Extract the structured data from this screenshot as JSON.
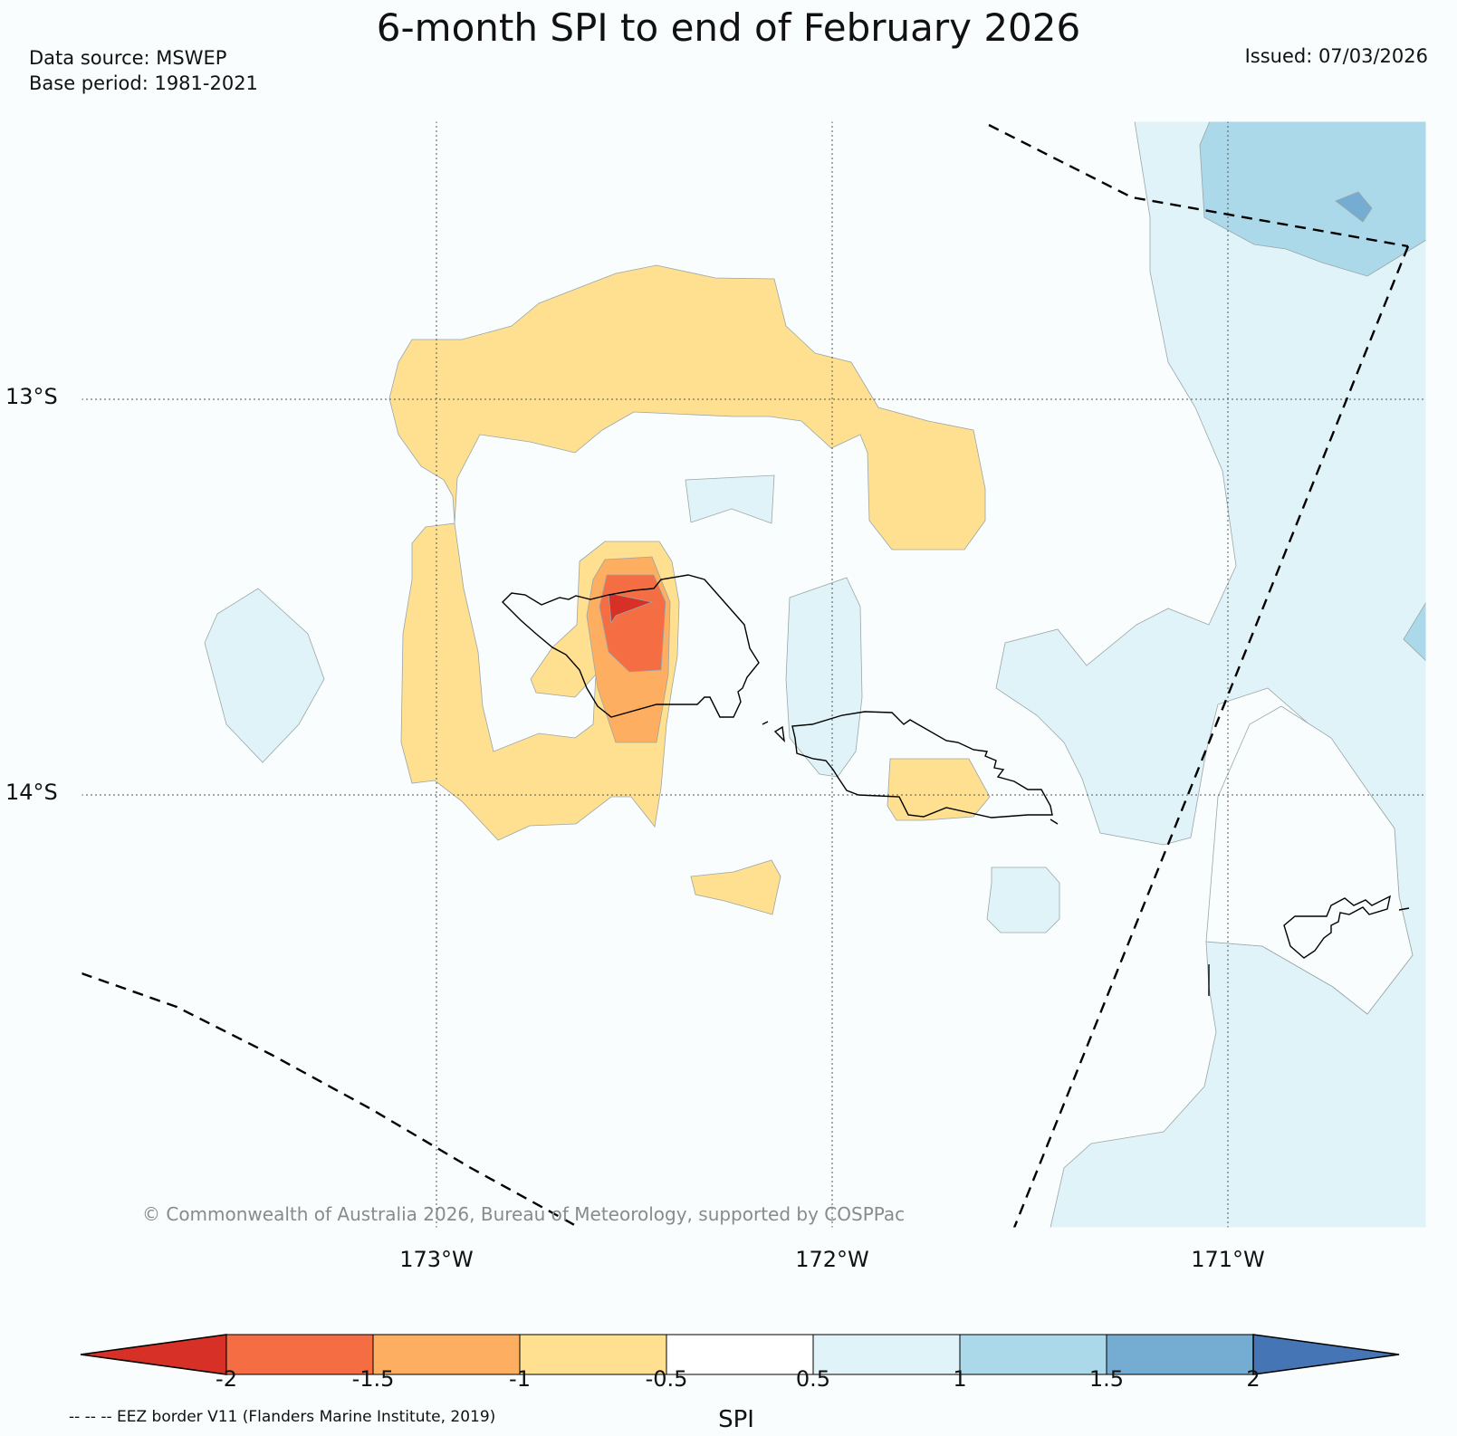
{
  "header": {
    "title": "6-month SPI to end of February 2026",
    "source_line": "Data source: MSWEP",
    "base_line": "Base period: 1981-2021",
    "issued": "Issued: 07/03/2026"
  },
  "map": {
    "lat_labels": [
      "13°S",
      "14°S"
    ],
    "lon_labels": [
      "173°W",
      "172°W",
      "171°W"
    ],
    "copyright": "© Commonwealth of Australia 2026, Bureau of Meteorology, supported by COSPPac"
  },
  "colorbar": {
    "label": "SPI",
    "ticks": [
      "-2",
      "-1.5",
      "-1",
      "-0.5",
      "0.5",
      "1",
      "1.5",
      "2"
    ],
    "colors": [
      "#d73027",
      "#f46d43",
      "#fdae61",
      "#fee090",
      "#ffffff",
      "#e0f3f8",
      "#abd9e9",
      "#74add1",
      "#4575b4"
    ]
  },
  "legend_note": "-- -- -- EEZ border V11 (Flanders Marine Institute, 2019)"
}
